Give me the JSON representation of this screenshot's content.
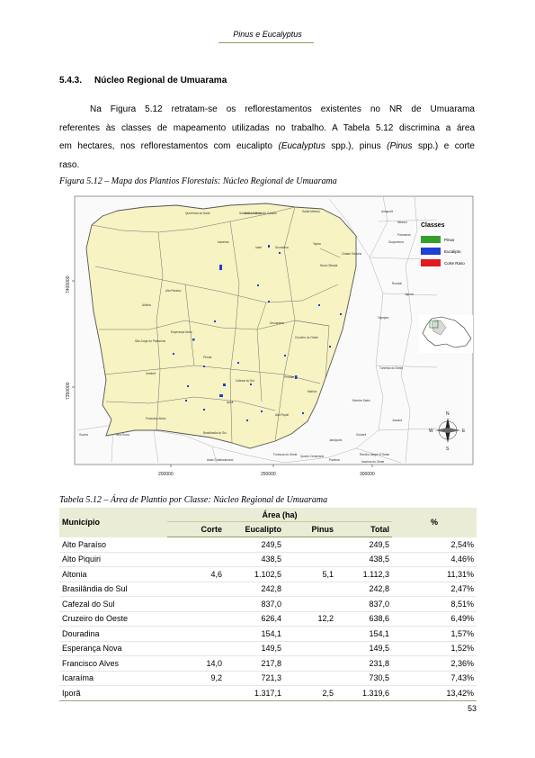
{
  "header": {
    "title": "Pinus e Eucalyptus"
  },
  "section": {
    "number": "5.4.3.",
    "title": "Núcleo Regional de Umuarama"
  },
  "paragraph": {
    "line1": "Na Figura 5.12 retratam-se os reflorestamentos existentes no NR de Umuarama",
    "line2": "referentes às classes de mapeamento utilizadas no trabalho. A Tabela 5.12 discrimina a área",
    "line3_a": "em hectares, nos reflorestamentos com eucalipto ",
    "line3_b": "(Eucalyptus",
    "line3_c": " spp.), pinus ",
    "line3_d": "(Pinus",
    "line3_e": " spp.) e corte",
    "line4": "raso."
  },
  "figure": {
    "caption": "Figura 5.12 – Mapa dos Plantios Florestais: Núcleo Regional de Umuarama",
    "legend": {
      "title": "Classes",
      "items": [
        {
          "label": "Pinus",
          "color": "#33a02c"
        },
        {
          "label": "Eucalipto",
          "color": "#1f3fd6"
        },
        {
          "label": "Corte Raso",
          "color": "#e31a1c"
        }
      ]
    },
    "y_ticks": [
      "7400000",
      "7350000"
    ],
    "x_ticks": [
      "200000",
      "250000",
      "300000"
    ],
    "compass": {
      "n": "N",
      "s": "S",
      "e": "E",
      "w": "W"
    },
    "place_labels": [
      "Guaíra",
      "Terra Roxa",
      "Altônia",
      "Iporã",
      "Francisco Alves",
      "Xambrê",
      "Pérola",
      "Umuarama",
      "Cruzeiro do Oeste",
      "Icaraíma",
      "Alto Paraíso",
      "Douradina",
      "Ivaté",
      "Maria Helena",
      "Tapira",
      "Cidade Gaúcha",
      "Nova Olímpia",
      "Perobal",
      "Alto Piquiri",
      "Brasilândia do Sul",
      "Cafezal do Sul",
      "Esperança Nova",
      "São Jorge do Patrocínio",
      "Mariluz",
      "Moreira Sales",
      "Goioerê",
      "Palotina",
      "Assis Chateaubriand",
      "Tuneiras do Oeste",
      "Santa Cruz de Monte Castelo",
      "Santa Mônica",
      "Querência do Norte",
      "Amaporã",
      "Mirador",
      "Paranavaí",
      "Guaporema",
      "Rondon",
      "Japurá",
      "Jussara",
      "Tapejara",
      "Formosa do Oeste",
      "Quarto Centenário",
      "Rancho Alegre D'Oeste",
      "Iracema do Oeste",
      "Janiópolis",
      "Umuarama"
    ]
  },
  "table": {
    "caption": "Tabela 5.12 – Área de Plantio por Classe: Núcleo Regional de Umuarama",
    "col_municipio": "Município",
    "col_area": "Área (ha)",
    "col_percent": "%",
    "sub_corte": "Corte",
    "sub_eucalipto": "Eucalipto",
    "sub_pinus": "Pinus",
    "sub_total": "Total",
    "rows": [
      {
        "municipio": "Alto Paraíso",
        "corte": "",
        "eucalipto": "249,5",
        "pinus": "",
        "total": "249,5",
        "pct": "2,54%"
      },
      {
        "municipio": "Alto Piquiri",
        "corte": "",
        "eucalipto": "438,5",
        "pinus": "",
        "total": "438,5",
        "pct": "4,46%"
      },
      {
        "municipio": "Altonia",
        "corte": "4,6",
        "eucalipto": "1.102,5",
        "pinus": "5,1",
        "total": "1.112,3",
        "pct": "11,31%"
      },
      {
        "municipio": "Brasilândia do Sul",
        "corte": "",
        "eucalipto": "242,8",
        "pinus": "",
        "total": "242,8",
        "pct": "2,47%"
      },
      {
        "municipio": "Cafezal do Sul",
        "corte": "",
        "eucalipto": "837,0",
        "pinus": "",
        "total": "837,0",
        "pct": "8,51%"
      },
      {
        "municipio": "Cruzeiro do Oeste",
        "corte": "",
        "eucalipto": "626,4",
        "pinus": "12,2",
        "total": "638,6",
        "pct": "6,49%"
      },
      {
        "municipio": "Douradina",
        "corte": "",
        "eucalipto": "154,1",
        "pinus": "",
        "total": "154,1",
        "pct": "1,57%"
      },
      {
        "municipio": "Esperança Nova",
        "corte": "",
        "eucalipto": "149,5",
        "pinus": "",
        "total": "149,5",
        "pct": "1,52%"
      },
      {
        "municipio": "Francisco Alves",
        "corte": "14,0",
        "eucalipto": "217,8",
        "pinus": "",
        "total": "231,8",
        "pct": "2,36%"
      },
      {
        "municipio": "Icaraíma",
        "corte": "9,2",
        "eucalipto": "721,3",
        "pinus": "",
        "total": "730,5",
        "pct": "7,43%"
      },
      {
        "municipio": "Iporã",
        "corte": "",
        "eucalipto": "1.317,1",
        "pinus": "2,5",
        "total": "1.319,6",
        "pct": "13,42%"
      }
    ]
  },
  "page_number": "53"
}
